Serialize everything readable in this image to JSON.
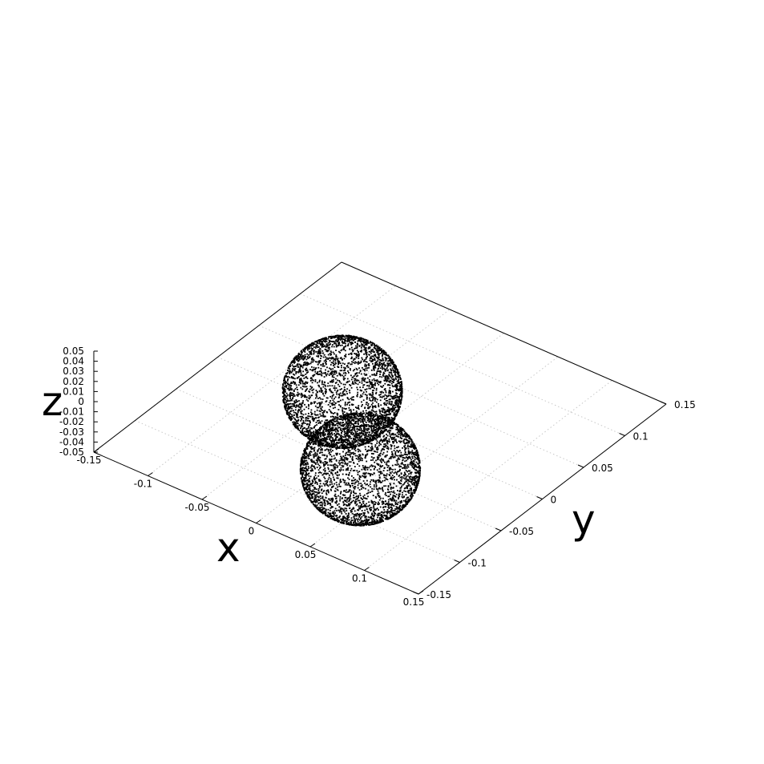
{
  "chart_data": {
    "type": "scatter",
    "dimensions": 3,
    "title": "",
    "xlabel": "x",
    "ylabel": "y",
    "zlabel": "z",
    "xlim": [
      -0.15,
      0.15
    ],
    "ylim": [
      -0.15,
      0.15
    ],
    "zlim": [
      -0.05,
      0.05
    ],
    "x_ticks": [
      "-0.15",
      "-0.1",
      "-0.05",
      "0",
      "0.05",
      "0.1",
      "0.15"
    ],
    "y_ticks": [
      "-0.15",
      "-0.1",
      "-0.05",
      "0",
      "0.05",
      "0.1",
      "0.15"
    ],
    "z_ticks": [
      "-0.05",
      "-0.04",
      "-0.03",
      "-0.02",
      "-0.01",
      "0",
      "0.01",
      "0.02",
      "0.03",
      "0.04",
      "0.05"
    ],
    "grid": true,
    "point_color": "#000000",
    "series": [
      {
        "shape": "sphere-surface-points",
        "center": [
          -0.05,
          0.02,
          0.0
        ],
        "radius": 0.044,
        "approx_points": 4000
      },
      {
        "shape": "sphere-surface-points",
        "center": [
          0.02,
          -0.05,
          0.0
        ],
        "radius": 0.044,
        "approx_points": 4000
      }
    ]
  }
}
